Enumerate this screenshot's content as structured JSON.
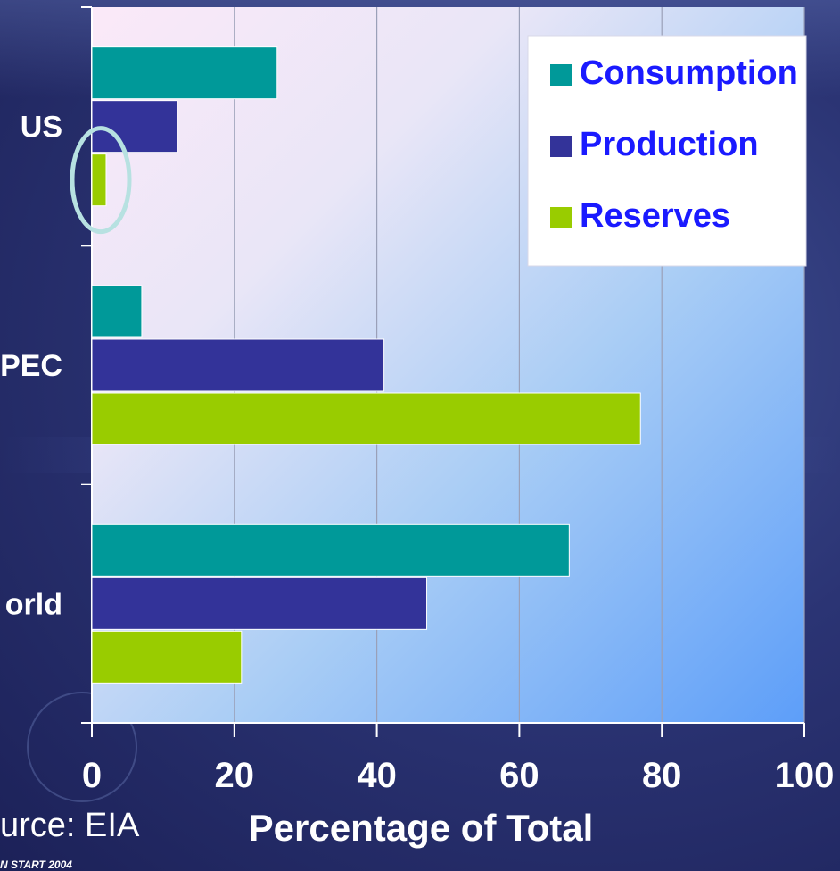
{
  "chart_data": {
    "type": "bar",
    "orientation": "horizontal",
    "categories": [
      "US",
      "PEC",
      "orld"
    ],
    "series": [
      {
        "name": "Consumption",
        "color": "#009999",
        "values": [
          26,
          7,
          67
        ]
      },
      {
        "name": "Production",
        "color": "#333399",
        "values": [
          12,
          41,
          47
        ]
      },
      {
        "name": "Reserves",
        "color": "#99cc00",
        "values": [
          2,
          77,
          21
        ]
      }
    ],
    "xlim": [
      0,
      100
    ],
    "xticks": [
      "0",
      "20",
      "40",
      "60",
      "80",
      "100"
    ],
    "xlabel": "Percentage of Total",
    "legend_position": "top-right",
    "grid": true,
    "highlight": {
      "category": "US",
      "series": "Reserves",
      "color": "#b7e1e1"
    }
  },
  "source": "urce: EIA",
  "footer_note": "N START 2004"
}
